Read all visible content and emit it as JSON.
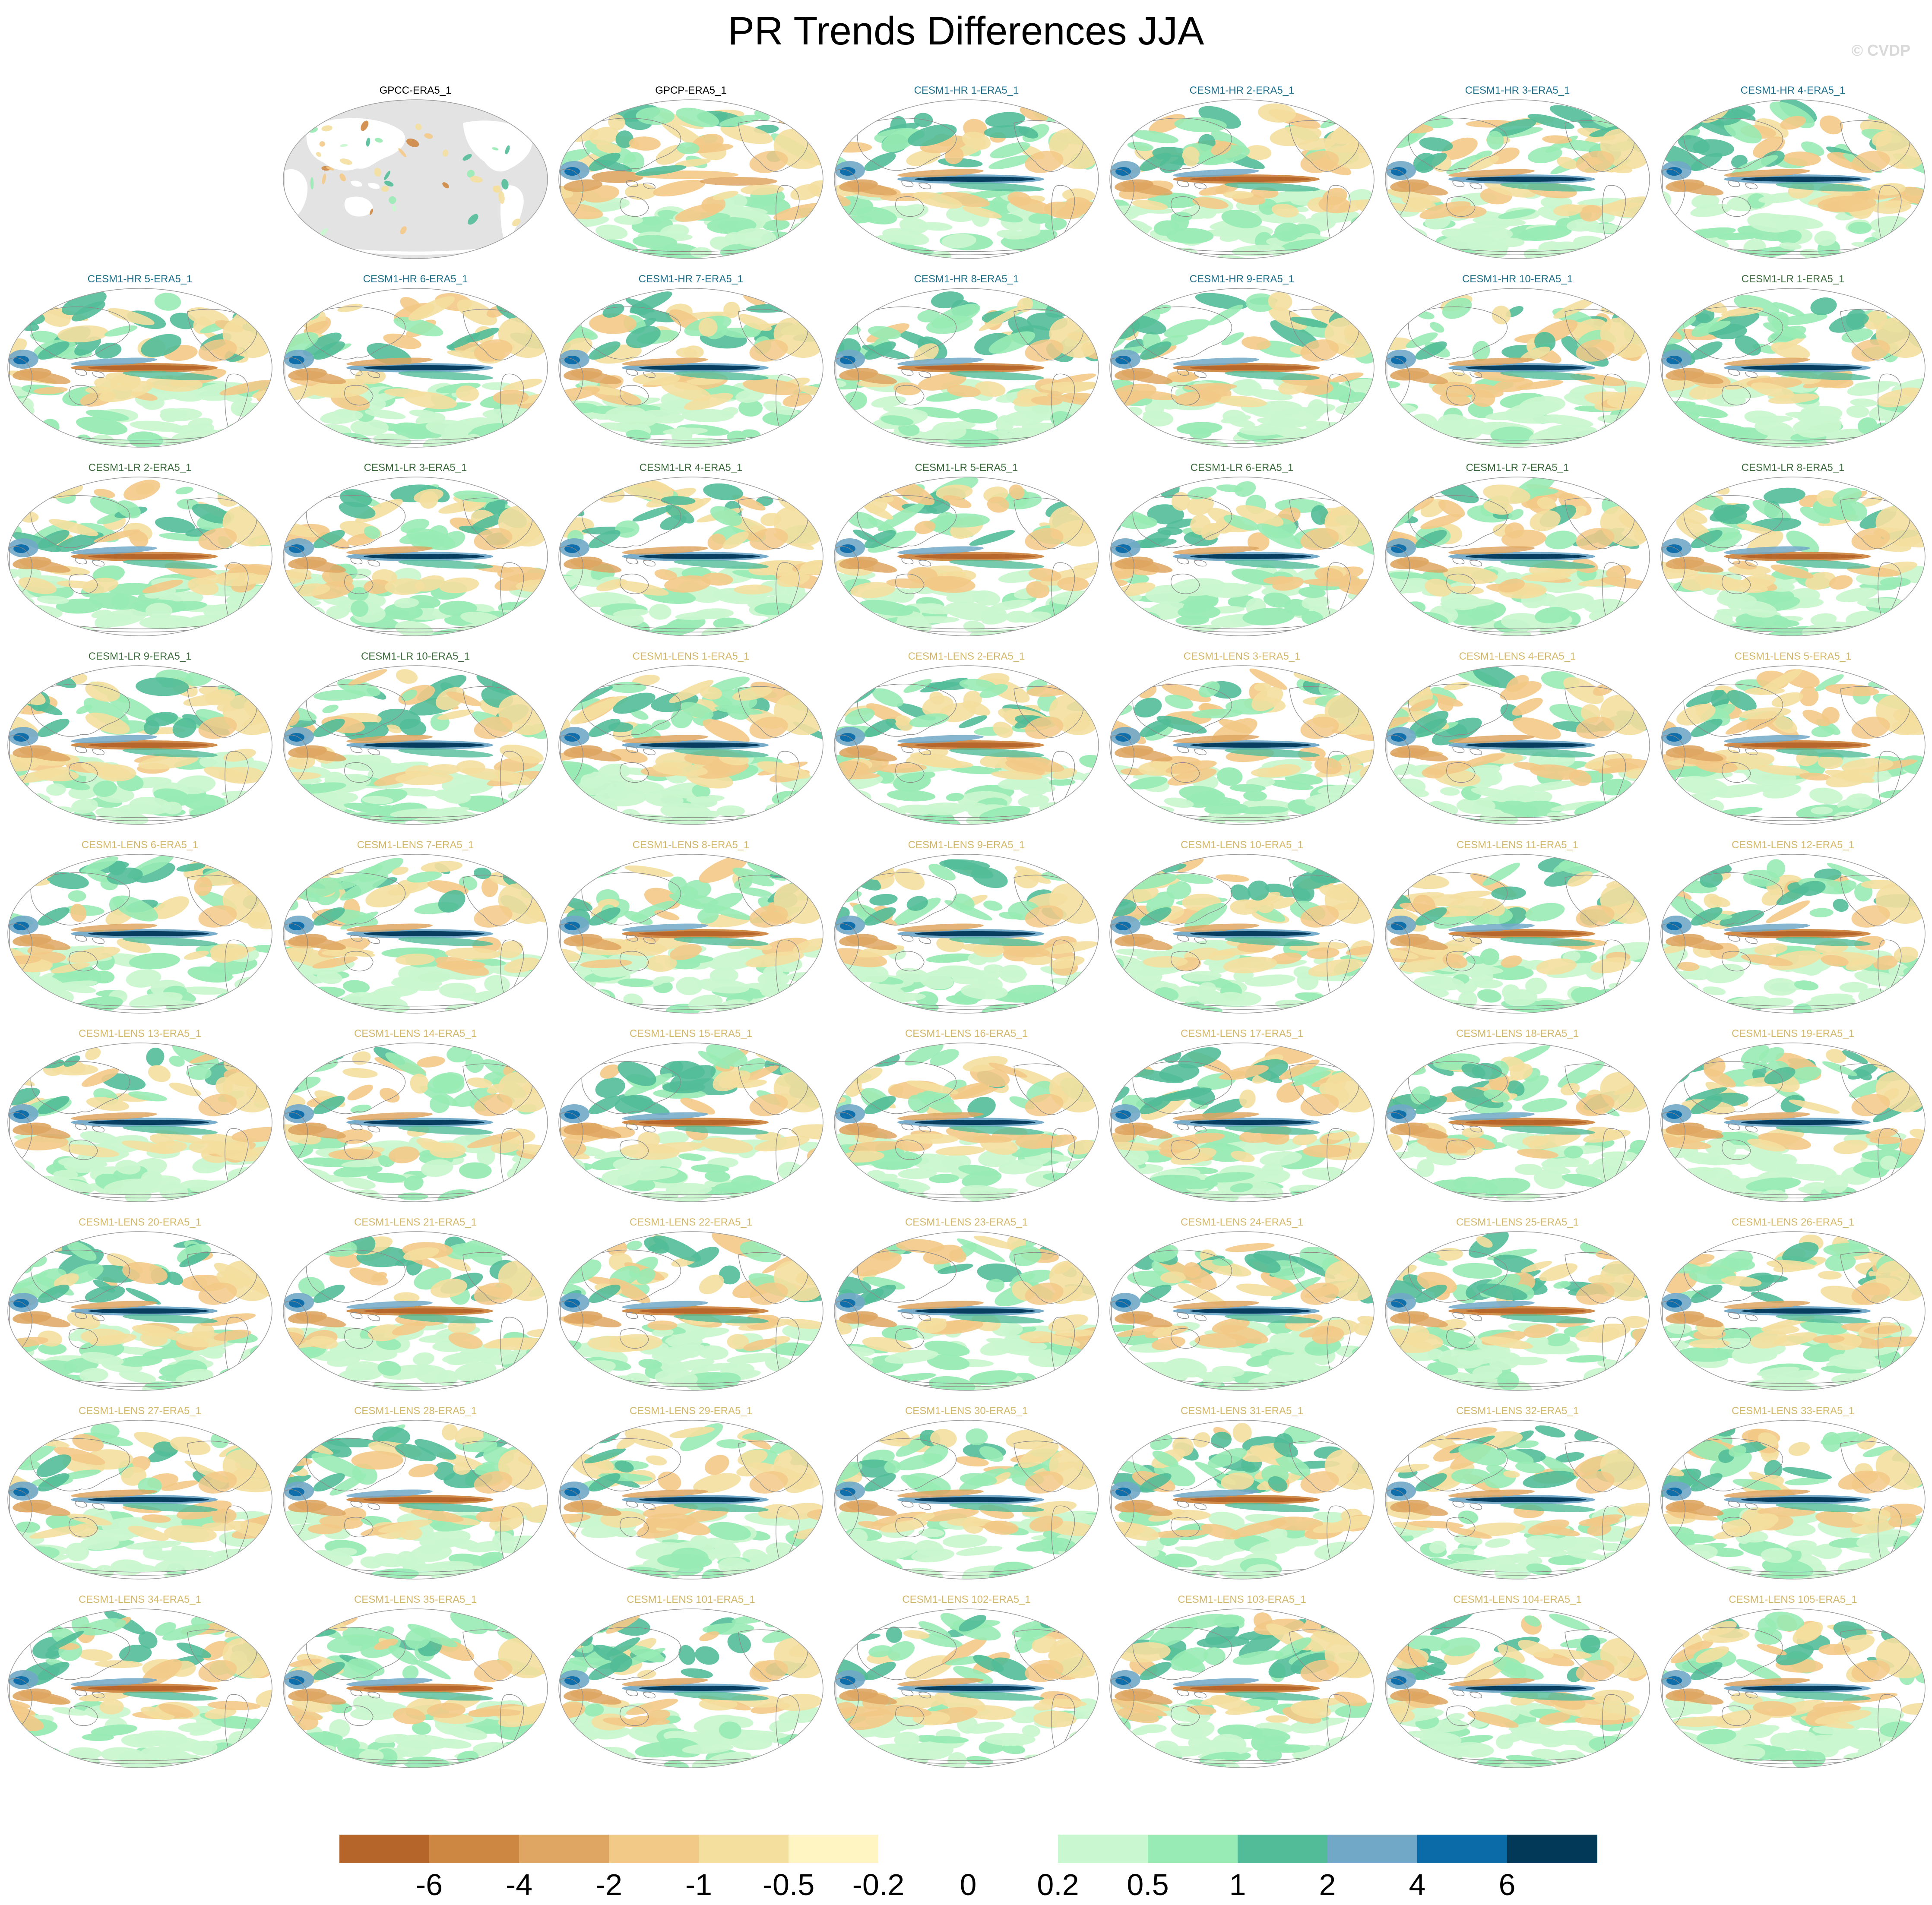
{
  "title": "PR Trends Differences JJA",
  "credit": "© CVDP",
  "panels": [
    {
      "label": "GPCC-ERA5_1",
      "group": "obs",
      "land_only": true
    },
    {
      "label": "GPCP-ERA5_1",
      "group": "obs"
    },
    {
      "label": "CESM1-HR 1-ERA5_1",
      "group": "hr"
    },
    {
      "label": "CESM1-HR 2-ERA5_1",
      "group": "hr"
    },
    {
      "label": "CESM1-HR 3-ERA5_1",
      "group": "hr"
    },
    {
      "label": "CESM1-HR 4-ERA5_1",
      "group": "hr"
    },
    {
      "label": "CESM1-HR 5-ERA5_1",
      "group": "hr"
    },
    {
      "label": "CESM1-HR 6-ERA5_1",
      "group": "hr"
    },
    {
      "label": "CESM1-HR 7-ERA5_1",
      "group": "hr"
    },
    {
      "label": "CESM1-HR 8-ERA5_1",
      "group": "hr"
    },
    {
      "label": "CESM1-HR 9-ERA5_1",
      "group": "hr"
    },
    {
      "label": "CESM1-HR 10-ERA5_1",
      "group": "hr"
    },
    {
      "label": "CESM1-LR 1-ERA5_1",
      "group": "lr"
    },
    {
      "label": "CESM1-LR 2-ERA5_1",
      "group": "lr"
    },
    {
      "label": "CESM1-LR 3-ERA5_1",
      "group": "lr"
    },
    {
      "label": "CESM1-LR 4-ERA5_1",
      "group": "lr"
    },
    {
      "label": "CESM1-LR 5-ERA5_1",
      "group": "lr"
    },
    {
      "label": "CESM1-LR 6-ERA5_1",
      "group": "lr"
    },
    {
      "label": "CESM1-LR 7-ERA5_1",
      "group": "lr"
    },
    {
      "label": "CESM1-LR 8-ERA5_1",
      "group": "lr"
    },
    {
      "label": "CESM1-LR 9-ERA5_1",
      "group": "lr"
    },
    {
      "label": "CESM1-LR 10-ERA5_1",
      "group": "lr"
    },
    {
      "label": "CESM1-LENS 1-ERA5_1",
      "group": "lens"
    },
    {
      "label": "CESM1-LENS 2-ERA5_1",
      "group": "lens"
    },
    {
      "label": "CESM1-LENS 3-ERA5_1",
      "group": "lens"
    },
    {
      "label": "CESM1-LENS 4-ERA5_1",
      "group": "lens"
    },
    {
      "label": "CESM1-LENS 5-ERA5_1",
      "group": "lens"
    },
    {
      "label": "CESM1-LENS 6-ERA5_1",
      "group": "lens"
    },
    {
      "label": "CESM1-LENS 7-ERA5_1",
      "group": "lens"
    },
    {
      "label": "CESM1-LENS 8-ERA5_1",
      "group": "lens"
    },
    {
      "label": "CESM1-LENS 9-ERA5_1",
      "group": "lens"
    },
    {
      "label": "CESM1-LENS 10-ERA5_1",
      "group": "lens"
    },
    {
      "label": "CESM1-LENS 11-ERA5_1",
      "group": "lens"
    },
    {
      "label": "CESM1-LENS 12-ERA5_1",
      "group": "lens"
    },
    {
      "label": "CESM1-LENS 13-ERA5_1",
      "group": "lens"
    },
    {
      "label": "CESM1-LENS 14-ERA5_1",
      "group": "lens"
    },
    {
      "label": "CESM1-LENS 15-ERA5_1",
      "group": "lens"
    },
    {
      "label": "CESM1-LENS 16-ERA5_1",
      "group": "lens"
    },
    {
      "label": "CESM1-LENS 17-ERA5_1",
      "group": "lens"
    },
    {
      "label": "CESM1-LENS 18-ERA5_1",
      "group": "lens"
    },
    {
      "label": "CESM1-LENS 19-ERA5_1",
      "group": "lens"
    },
    {
      "label": "CESM1-LENS 20-ERA5_1",
      "group": "lens"
    },
    {
      "label": "CESM1-LENS 21-ERA5_1",
      "group": "lens"
    },
    {
      "label": "CESM1-LENS 22-ERA5_1",
      "group": "lens"
    },
    {
      "label": "CESM1-LENS 23-ERA5_1",
      "group": "lens"
    },
    {
      "label": "CESM1-LENS 24-ERA5_1",
      "group": "lens"
    },
    {
      "label": "CESM1-LENS 25-ERA5_1",
      "group": "lens"
    },
    {
      "label": "CESM1-LENS 26-ERA5_1",
      "group": "lens"
    },
    {
      "label": "CESM1-LENS 27-ERA5_1",
      "group": "lens"
    },
    {
      "label": "CESM1-LENS 28-ERA5_1",
      "group": "lens"
    },
    {
      "label": "CESM1-LENS 29-ERA5_1",
      "group": "lens"
    },
    {
      "label": "CESM1-LENS 30-ERA5_1",
      "group": "lens"
    },
    {
      "label": "CESM1-LENS 31-ERA5_1",
      "group": "lens"
    },
    {
      "label": "CESM1-LENS 32-ERA5_1",
      "group": "lens"
    },
    {
      "label": "CESM1-LENS 33-ERA5_1",
      "group": "lens"
    },
    {
      "label": "CESM1-LENS 34-ERA5_1",
      "group": "lens"
    },
    {
      "label": "CESM1-LENS 35-ERA5_1",
      "group": "lens"
    },
    {
      "label": "CESM1-LENS 101-ERA5_1",
      "group": "lens"
    },
    {
      "label": "CESM1-LENS 102-ERA5_1",
      "group": "lens"
    },
    {
      "label": "CESM1-LENS 103-ERA5_1",
      "group": "lens"
    },
    {
      "label": "CESM1-LENS 104-ERA5_1",
      "group": "lens"
    },
    {
      "label": "CESM1-LENS 105-ERA5_1",
      "group": "lens"
    }
  ],
  "group_colors": {
    "obs": "#000000",
    "hr": "#1f6f8b",
    "lr": "#3d6b3d",
    "lens": "#d4b86a"
  },
  "colorbar": {
    "colors": [
      "#b5652a",
      "#cd8742",
      "#dea662",
      "#f3c987",
      "#f4df9e",
      "#fff5c2",
      "#ffffff",
      "#ffffff",
      "#c9f7cf",
      "#98ebb4",
      "#52bc98",
      "#71a8c8",
      "#0b6aa8",
      "#023858"
    ],
    "ticks": [
      "-6",
      "-4",
      "-2",
      "-1",
      "-0.5",
      "-0.2",
      "0",
      "0.2",
      "0.5",
      "1",
      "2",
      "4",
      "6"
    ]
  }
}
